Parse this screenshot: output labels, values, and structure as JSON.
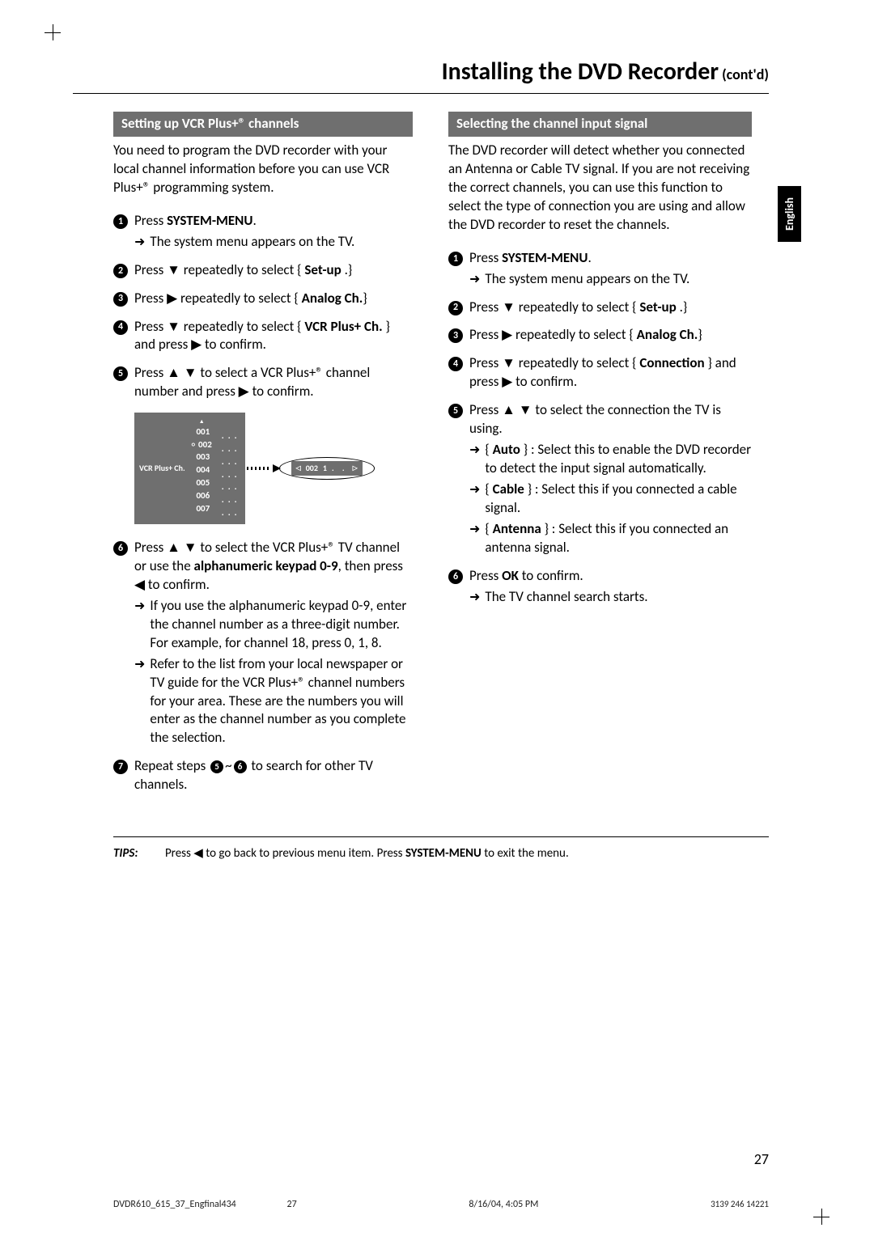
{
  "title_main": "Installing the DVD Recorder",
  "title_contd": " (cont'd)",
  "lang_tab": "English",
  "left": {
    "header": "Setting up VCR Plus+® channels",
    "intro": "You need to program the DVD recorder with your local channel information before you can use VCR Plus+® programming system.",
    "s1_press": "Press ",
    "s1_menu": "SYSTEM-MENU",
    "s1_dot": ".",
    "s1_sub": "The system menu appears on the TV.",
    "s2_a": "Press ▼ repeatedly to select { ",
    "s2_b": "Set-up",
    "s2_c": " .}",
    "s3_a": "Press ▶ repeatedly to select { ",
    "s3_b": "Analog Ch.",
    "s3_c": "}",
    "s4_a": "Press ▼ repeatedly to select { ",
    "s4_b": "VCR Plus+ Ch.",
    "s4_c": " } and press ▶ to confirm.",
    "s5": "Press ▲ ▼ to select a VCR Plus+® channel number and press ▶ to confirm.",
    "diag_label": "VCR Plus+ Ch.",
    "diag_nums": [
      "001",
      "002",
      "003",
      "004",
      "005",
      "006",
      "007"
    ],
    "diag_oval_num": "002",
    "diag_oval_right": "1",
    "s6_a": "Press ▲ ▼ to select the VCR Plus+® TV channel or use the ",
    "s6_b": "alphanumeric keypad 0-9",
    "s6_c": ", then press ◀ to confirm.",
    "s6_s1": "If you use the alphanumeric keypad 0-9, enter the channel number as a three-digit number. For example, for channel 18, press 0, 1, 8.",
    "s6_s2": "Refer to the list from your local newspaper or TV guide for the VCR Plus+® channel numbers for your area.  These are the numbers you will enter as the channel number as you complete the selection.",
    "s7_a": "Repeat steps ",
    "s7_b": "~",
    "s7_c": " to search for other TV channels."
  },
  "right": {
    "header": "Selecting the channel input signal",
    "intro": "The DVD recorder will detect whether you connected an Antenna or Cable TV signal.  If you are not receiving the correct channels, you can use this function to select the type of connection you are using and allow the DVD recorder to reset the channels.",
    "s1_press": "Press ",
    "s1_menu": "SYSTEM-MENU",
    "s1_dot": ".",
    "s1_sub": "The system menu appears on the TV.",
    "s2_a": "Press ▼ repeatedly to select { ",
    "s2_b": "Set-up",
    "s2_c": " .}",
    "s3_a": "Press ▶ repeatedly to select { ",
    "s3_b": "Analog Ch.",
    "s3_c": "}",
    "s4_a": "Press ▼ repeatedly to select { ",
    "s4_b": "Connection",
    "s4_c": " } and press ▶ to confirm.",
    "s5": "Press ▲ ▼ to select the connection the TV is using.",
    "s5_s1_b": "Auto",
    "s5_s1_t": " } : Select this to enable the DVD recorder to detect the input signal automatically.",
    "s5_s2_b": "Cable",
    "s5_s2_t": " } : Select this if you connected a cable signal.",
    "s5_s3_b": "Antenna",
    "s5_s3_t": " } : Select this if you connected an antenna signal.",
    "s6_a": "Press ",
    "s6_b": "OK",
    "s6_c": " to confirm.",
    "s6_sub": "The TV channel search starts."
  },
  "tips": {
    "label": "TIPS:",
    "text_a": "Press ◀ to go back to previous menu item.  Press ",
    "text_b": "SYSTEM-MENU",
    "text_c": " to exit the menu."
  },
  "page_num": "27",
  "footer": {
    "file": "DVDR610_615_37_Engfinal434",
    "pg": "27",
    "dt": "8/16/04, 4:05 PM",
    "code": "3139 246 14221"
  }
}
